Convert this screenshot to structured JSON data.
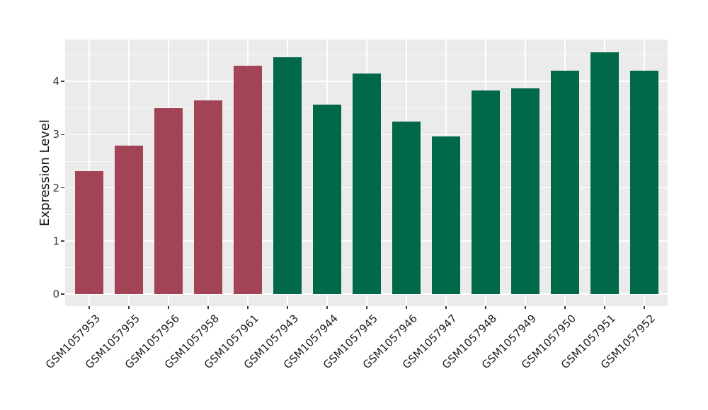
{
  "chart_data": {
    "type": "bar",
    "title": "",
    "xlabel": "",
    "ylabel": "Expression Level",
    "categories": [
      "GSM1057953",
      "GSM1057955",
      "GSM1057956",
      "GSM1057958",
      "GSM1057961",
      "GSM1057943",
      "GSM1057944",
      "GSM1057945",
      "GSM1057946",
      "GSM1057947",
      "GSM1057948",
      "GSM1057949",
      "GSM1057950",
      "GSM1057951",
      "GSM1057952"
    ],
    "values": [
      2.31,
      2.79,
      3.5,
      3.65,
      4.3,
      4.46,
      3.56,
      4.15,
      3.24,
      2.96,
      3.83,
      3.87,
      4.2,
      4.55,
      4.2
    ],
    "bar_colors": [
      "#A24455",
      "#A24455",
      "#A24455",
      "#A24455",
      "#A24455",
      "#02684A",
      "#02684A",
      "#02684A",
      "#02684A",
      "#02684A",
      "#02684A",
      "#02684A",
      "#02684A",
      "#02684A",
      "#02684A"
    ],
    "group_colors": {
      "maroon": "#A24455",
      "green": "#02684A"
    },
    "yticks": [
      0,
      1,
      2,
      3,
      4
    ],
    "yticks_minor": [
      0.5,
      1.5,
      2.5,
      3.5,
      4.5
    ],
    "ylim": [
      -0.23,
      4.79
    ],
    "grid": true,
    "legend": false,
    "x_tick_rotation_deg": 45,
    "panel_background": "#EBEBEB",
    "grid_color": "#FFFFFF",
    "axis_text_color": "#3A3A3A"
  }
}
